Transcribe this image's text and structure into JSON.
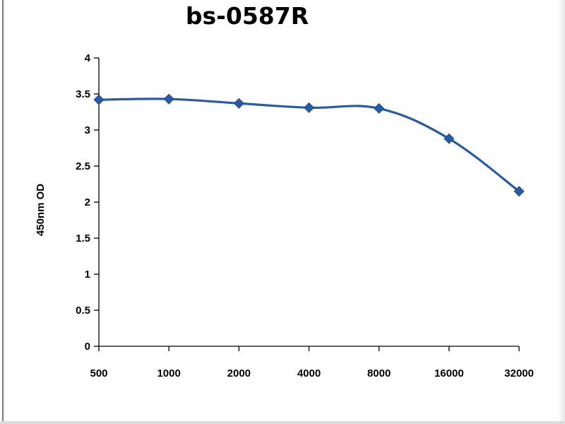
{
  "chart_data": {
    "type": "line",
    "title": "bs-0587R",
    "xlabel": "",
    "ylabel": "450nm OD",
    "categories": [
      "500",
      "1000",
      "2000",
      "4000",
      "8000",
      "16000",
      "32000"
    ],
    "series": [
      {
        "values": [
          3.42,
          3.43,
          3.37,
          3.31,
          3.3,
          2.88,
          2.15
        ]
      }
    ],
    "ylim": [
      0,
      4
    ],
    "yticks": [
      "0",
      "0.5",
      "1",
      "1.5",
      "2",
      "2.5",
      "3",
      "3.5",
      "4"
    ],
    "grid": false,
    "legend": "none",
    "line_color": "#2a5aa0",
    "marker": "diamond"
  }
}
